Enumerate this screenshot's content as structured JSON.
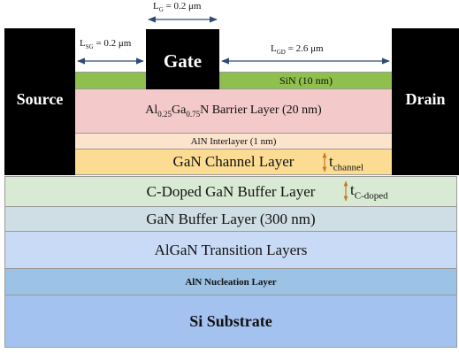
{
  "dimensions": {
    "lg": {
      "sym": "L",
      "sub": "G",
      "value": " = 0.2 μm"
    },
    "lsg": {
      "sym": "L",
      "sub": "SG",
      "value": " = 0.2 μm"
    },
    "lgd": {
      "sym": "L",
      "sub": "GD",
      "value": " = 2.6 μm"
    }
  },
  "electrodes": {
    "source": "Source",
    "gate": "Gate",
    "drain": "Drain"
  },
  "layers": {
    "sin": "SiN (10 nm)",
    "barrier": {
      "al": "Al",
      "al_sub": "0.25",
      "ga": "Ga",
      "ga_sub": "0.75",
      "rest": "N Barrier Layer (20 nm)"
    },
    "interlayer": "AlN Interlayer (1 nm)",
    "channel": "GaN Channel Layer",
    "cdoped": "C-Doped GaN Buffer Layer",
    "buffer": "GaN Buffer Layer (300 nm)",
    "transition": "AlGaN Transition Layers",
    "nucleation": "AlN Nucleation Layer",
    "substrate": "Si Substrate"
  },
  "thickness_labels": {
    "channel": {
      "sym": "t",
      "sub": "channel"
    },
    "cdoped": {
      "sym": "t",
      "sub": "C-doped"
    }
  },
  "colors": {
    "sin": "#8fbf4d",
    "barrier": "#f3c9c9",
    "interlayer": "#fce3cc",
    "channel": "#fbdc92",
    "cdoped": "#d9ead4",
    "buffer": "#cfdde4",
    "transition": "#c8daf5",
    "nucleation": "#9cc2e5",
    "substrate": "#a4c2ef",
    "arrow": "#2e4a78",
    "tick": "#c87a20"
  }
}
